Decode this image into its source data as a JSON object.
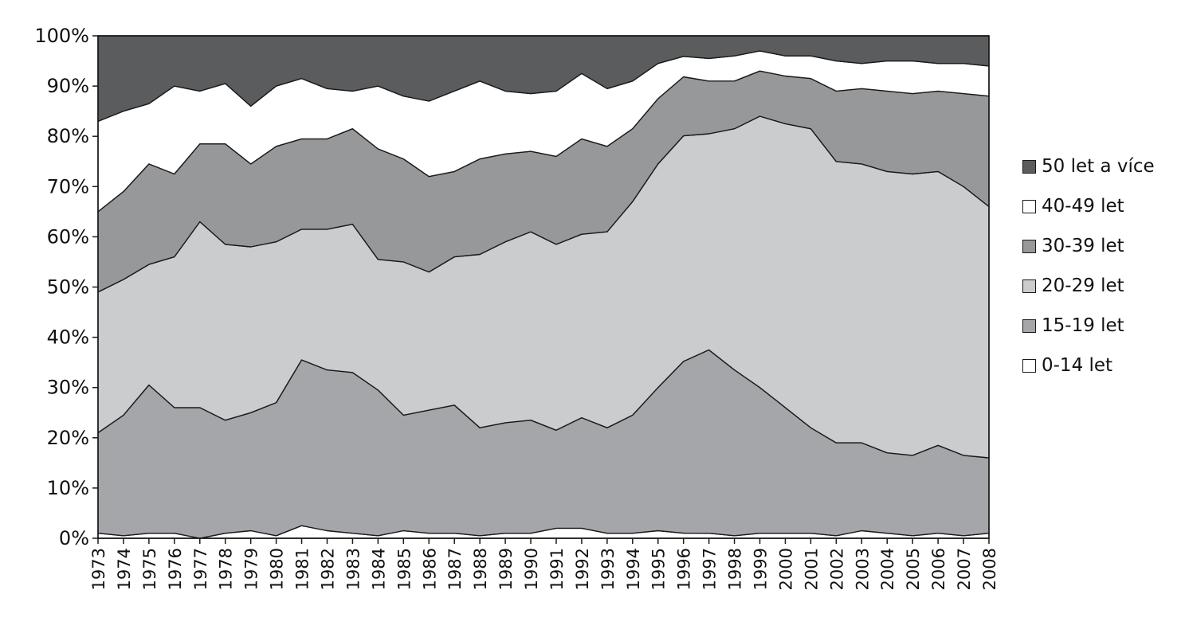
{
  "chart_data": {
    "type": "area",
    "stacked": true,
    "percent": true,
    "x": [
      "1973",
      "1974",
      "1975",
      "1976",
      "1977",
      "1978",
      "1979",
      "1980",
      "1981",
      "1982",
      "1983",
      "1984",
      "1985",
      "1986",
      "1987",
      "1988",
      "1989",
      "1990",
      "1991",
      "1992",
      "1993",
      "1994",
      "1995",
      "1996",
      "1997",
      "1998",
      "1999",
      "2000",
      "2001",
      "2002",
      "2003",
      "2004",
      "2005",
      "2006",
      "2007",
      "2008"
    ],
    "series": [
      {
        "name": "0-14 let",
        "color": "#ffffff",
        "values": [
          1,
          0.5,
          1,
          1,
          0,
          1,
          1.5,
          0.5,
          2.5,
          1.5,
          1,
          0.5,
          1.5,
          1,
          1,
          0.5,
          1,
          1,
          2,
          2,
          1,
          1,
          1.5,
          1,
          1,
          0.5,
          1,
          1,
          1,
          0.5,
          1.5,
          1,
          0.5,
          1,
          0.5,
          1
        ]
      },
      {
        "name": "15-19 let",
        "color": "#a5a6aa",
        "values": [
          20,
          24,
          29.5,
          25,
          26,
          22.5,
          23.5,
          26.5,
          33,
          32,
          32,
          29,
          23,
          24.5,
          25.5,
          21.5,
          22,
          22.5,
          19.5,
          22,
          21,
          23.5,
          28.5,
          33.5,
          36.5,
          33,
          29,
          25,
          21,
          18.5,
          17.5,
          16,
          16,
          17.5,
          16,
          15
        ]
      },
      {
        "name": "20-29 let",
        "color": "#cbcccd",
        "values": [
          28,
          27,
          24,
          30,
          37,
          35,
          33,
          32,
          26,
          28,
          29.5,
          26,
          30.5,
          27.5,
          29.5,
          34.5,
          36,
          37.5,
          37,
          36.5,
          39,
          42.5,
          44.5,
          44,
          43,
          48,
          54,
          56.5,
          59.5,
          56,
          55.5,
          56,
          56,
          54.5,
          53.5,
          50
        ]
      },
      {
        "name": "30-39 let",
        "color": "#97989a",
        "values": [
          16,
          17.5,
          20,
          16.5,
          15.5,
          20,
          16.5,
          19,
          18,
          18,
          19,
          22,
          20.5,
          19,
          17,
          19,
          17.5,
          16,
          17.5,
          19,
          17,
          14.5,
          13,
          11.5,
          10.5,
          9.5,
          9,
          9.5,
          10,
          14,
          15,
          16,
          16,
          16,
          18.5,
          22
        ]
      },
      {
        "name": "40-49 let",
        "color": "#ffffff",
        "values": [
          18,
          16,
          12,
          17.5,
          10.5,
          12,
          11.5,
          12,
          12,
          10,
          7.5,
          12.5,
          12.5,
          15,
          16,
          15.5,
          12.5,
          11.5,
          13,
          13,
          11.5,
          9.5,
          7,
          4,
          4.5,
          5,
          4,
          4,
          4.5,
          6,
          5,
          6,
          6.5,
          5.5,
          6,
          6
        ]
      },
      {
        "name": "50 let a více",
        "color": "#5b5c5e",
        "values": [
          17,
          15,
          13.5,
          10,
          11,
          9.5,
          14,
          10,
          8.5,
          10.5,
          11,
          10,
          12,
          13,
          11,
          9,
          11,
          11.5,
          11,
          7.5,
          10.5,
          9,
          5.5,
          4,
          4.5,
          4,
          3,
          4,
          4,
          5,
          5.5,
          5,
          5,
          5.5,
          5.5,
          6
        ]
      }
    ],
    "y_ticks": [
      "0%",
      "10%",
      "20%",
      "30%",
      "40%",
      "50%",
      "60%",
      "70%",
      "80%",
      "90%",
      "100%"
    ],
    "ylim": [
      0,
      100
    ],
    "legend_position": "right",
    "legend_order": [
      "50 let a více",
      "40-49 let",
      "30-39 let",
      "20-29 let",
      "15-19 let",
      "0-14 let"
    ],
    "grid": false
  }
}
